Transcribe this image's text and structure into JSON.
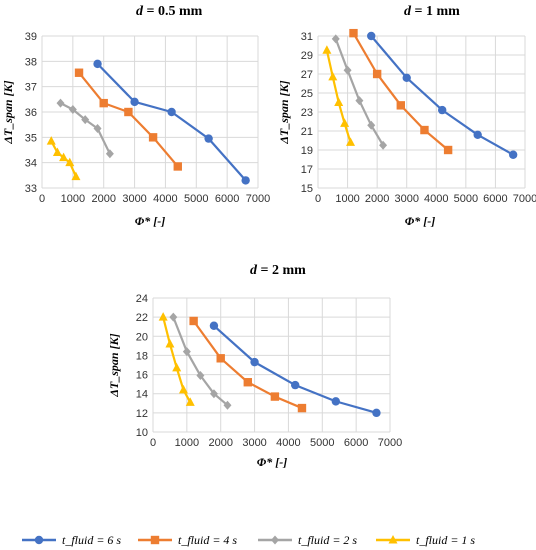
{
  "chart_data": [
    {
      "type": "line",
      "title": "d = 0.5 mm",
      "title_parts": {
        "var": "d",
        "rest": " = 0.5 mm"
      },
      "xlabel": "Φ* [-]",
      "ylabel": "ΔT_span [K]",
      "xlim": [
        0,
        7000
      ],
      "ylim": [
        33,
        39
      ],
      "xticks": [
        0,
        1000,
        2000,
        3000,
        4000,
        5000,
        6000,
        7000
      ],
      "yticks": [
        33,
        34,
        35,
        36,
        37,
        38,
        39
      ],
      "grid": true,
      "series": [
        {
          "name": "t_fluid = 6 s",
          "x": [
            1800,
            3000,
            4200,
            5400,
            6600
          ],
          "y": [
            37.9,
            36.4,
            36.0,
            34.95,
            33.3
          ]
        },
        {
          "name": "t_fluid = 4 s",
          "x": [
            1200,
            2000,
            2800,
            3600,
            4400
          ],
          "y": [
            37.55,
            36.35,
            36.0,
            35.0,
            33.85
          ]
        },
        {
          "name": "t_fluid = 2 s",
          "x": [
            600,
            1000,
            1400,
            1800,
            2200
          ],
          "y": [
            36.35,
            36.1,
            35.7,
            35.35,
            34.35
          ]
        },
        {
          "name": "t_fluid = 1 s",
          "x": [
            300,
            500,
            700,
            900,
            1100
          ],
          "y": [
            34.85,
            34.4,
            34.2,
            34.0,
            33.45
          ]
        }
      ]
    },
    {
      "type": "line",
      "title": "d = 1 mm",
      "title_parts": {
        "var": "d",
        "rest": " = 1 mm"
      },
      "xlabel": "Φ* [-]",
      "ylabel": "ΔT_span [K]",
      "xlim": [
        0,
        7000
      ],
      "ylim": [
        15,
        31
      ],
      "xticks": [
        0,
        1000,
        2000,
        3000,
        4000,
        5000,
        6000,
        7000
      ],
      "yticks": [
        15,
        17,
        19,
        21,
        23,
        25,
        27,
        29,
        31
      ],
      "grid": true,
      "series": [
        {
          "name": "t_fluid = 6 s",
          "x": [
            1800,
            3000,
            4200,
            5400,
            6600
          ],
          "y": [
            31.0,
            26.6,
            23.2,
            20.6,
            18.5
          ]
        },
        {
          "name": "t_fluid = 4 s",
          "x": [
            1200,
            2000,
            2800,
            3600,
            4400
          ],
          "y": [
            31.3,
            27.0,
            23.7,
            21.1,
            19.0
          ]
        },
        {
          "name": "t_fluid = 2 s",
          "x": [
            600,
            1000,
            1400,
            1800,
            2200
          ],
          "y": [
            30.7,
            27.4,
            24.2,
            21.6,
            19.5
          ]
        },
        {
          "name": "t_fluid = 1 s",
          "x": [
            300,
            500,
            700,
            900,
            1100
          ],
          "y": [
            29.5,
            26.7,
            24.0,
            21.8,
            19.8
          ]
        }
      ]
    },
    {
      "type": "line",
      "title": "d = 2 mm",
      "title_parts": {
        "var": "d",
        "rest": " = 2 mm"
      },
      "xlabel": "Φ* [-]",
      "ylabel": "ΔT_span [K]",
      "xlim": [
        0,
        7000
      ],
      "ylim": [
        10,
        24
      ],
      "xticks": [
        0,
        1000,
        2000,
        3000,
        4000,
        5000,
        6000,
        7000
      ],
      "yticks": [
        10,
        12,
        14,
        16,
        18,
        20,
        22,
        24
      ],
      "grid": true,
      "series": [
        {
          "name": "t_fluid = 6 s",
          "x": [
            1800,
            3000,
            4200,
            5400,
            6600
          ],
          "y": [
            21.1,
            17.3,
            14.9,
            13.2,
            12.0
          ]
        },
        {
          "name": "t_fluid = 4 s",
          "x": [
            1200,
            2000,
            2800,
            3600,
            4400
          ],
          "y": [
            21.6,
            17.7,
            15.2,
            13.7,
            12.5
          ]
        },
        {
          "name": "t_fluid = 2 s",
          "x": [
            600,
            1000,
            1400,
            1800,
            2200
          ],
          "y": [
            22.0,
            18.4,
            15.9,
            14.0,
            12.8
          ]
        },
        {
          "name": "t_fluid = 1 s",
          "x": [
            300,
            500,
            700,
            900,
            1100
          ],
          "y": [
            22.0,
            19.2,
            16.7,
            14.4,
            13.1
          ]
        }
      ]
    }
  ],
  "legend": {
    "placement": "bottom",
    "items": [
      {
        "label": "t_fluid = 6 s",
        "color": "#4472C4",
        "marker": "circle"
      },
      {
        "label": "t_fluid = 4 s",
        "color": "#ED7D31",
        "marker": "square"
      },
      {
        "label": "t_fluid = 2 s",
        "color": "#A5A5A5",
        "marker": "diamond"
      },
      {
        "label": "t_fluid = 1 s",
        "color": "#FFC000",
        "marker": "triangle"
      }
    ]
  }
}
